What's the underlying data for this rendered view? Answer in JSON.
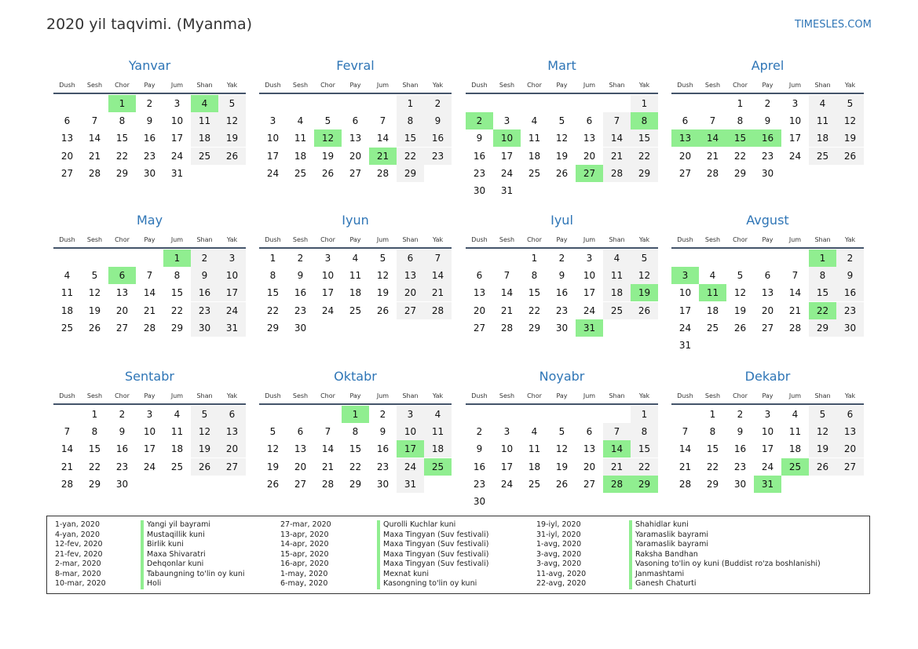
{
  "header": {
    "title": "2020 yil taqvimi. (Myanma)",
    "site": "TIMESLES.COM"
  },
  "weekdays": [
    "Dush",
    "Sesh",
    "Chor",
    "Pay",
    "Jum",
    "Shan",
    "Yak"
  ],
  "colors": {
    "accent": "#2e75b6",
    "holiday": "#90ee90",
    "weekend": "#f2f2f2",
    "rule": "#44546a"
  },
  "months": [
    {
      "name": "Yanvar",
      "start": 2,
      "days": 31,
      "holidays": [
        1,
        4
      ]
    },
    {
      "name": "Fevral",
      "start": 5,
      "days": 29,
      "holidays": [
        12,
        21
      ]
    },
    {
      "name": "Mart",
      "start": 6,
      "days": 31,
      "holidays": [
        2,
        8,
        10,
        27
      ]
    },
    {
      "name": "Aprel",
      "start": 2,
      "days": 30,
      "holidays": [
        13,
        14,
        15,
        16
      ]
    },
    {
      "name": "May",
      "start": 4,
      "days": 31,
      "holidays": [
        1,
        6
      ]
    },
    {
      "name": "Iyun",
      "start": 0,
      "days": 30,
      "holidays": []
    },
    {
      "name": "Iyul",
      "start": 2,
      "days": 31,
      "holidays": [
        19,
        31
      ]
    },
    {
      "name": "Avgust",
      "start": 5,
      "days": 31,
      "holidays": [
        1,
        3,
        11,
        22
      ]
    },
    {
      "name": "Sentabr",
      "start": 1,
      "days": 30,
      "holidays": []
    },
    {
      "name": "Oktabr",
      "start": 3,
      "days": 31,
      "holidays": [
        1,
        17,
        25
      ]
    },
    {
      "name": "Noyabr",
      "start": 6,
      "days": 30,
      "holidays": [
        14,
        28,
        29
      ]
    },
    {
      "name": "Dekabr",
      "start": 1,
      "days": 31,
      "holidays": [
        25,
        31
      ]
    }
  ],
  "holiday_list": [
    [
      {
        "date": "1-yan, 2020",
        "name": "Yangi yil bayrami"
      },
      {
        "date": "4-yan, 2020",
        "name": "Mustaqillik kuni"
      },
      {
        "date": "12-fev, 2020",
        "name": "Birlik kuni"
      },
      {
        "date": "21-fev, 2020",
        "name": "Maxa Shivaratri"
      },
      {
        "date": "2-mar, 2020",
        "name": "Dehqonlar kuni"
      },
      {
        "date": "8-mar, 2020",
        "name": "Tabaungning to'lin oy kuni"
      },
      {
        "date": "10-mar, 2020",
        "name": "Holi"
      }
    ],
    [
      {
        "date": "27-mar, 2020",
        "name": "Qurolli Kuchlar kuni"
      },
      {
        "date": "13-apr, 2020",
        "name": "Maxa Tingyan (Suv festivali)"
      },
      {
        "date": "14-apr, 2020",
        "name": "Maxa Tingyan (Suv festivali)"
      },
      {
        "date": "15-apr, 2020",
        "name": "Maxa Tingyan (Suv festivali)"
      },
      {
        "date": "16-apr, 2020",
        "name": "Maxa Tingyan (Suv festivali)"
      },
      {
        "date": "1-may, 2020",
        "name": "Mexnat kuni"
      },
      {
        "date": "6-may, 2020",
        "name": "Kasongning to'lin oy kuni"
      }
    ],
    [
      {
        "date": "19-iyl, 2020",
        "name": "Shahidlar kuni"
      },
      {
        "date": "31-iyl, 2020",
        "name": "Yaramaslik bayrami"
      },
      {
        "date": "1-avg, 2020",
        "name": "Yaramaslik bayrami"
      },
      {
        "date": "3-avg, 2020",
        "name": "Raksha Bandhan"
      },
      {
        "date": "3-avg, 2020",
        "name": "Vasoning to'lin oy kuni (Buddist ro'za boshlanishi)"
      },
      {
        "date": "11-avg, 2020",
        "name": "Janmashtami"
      },
      {
        "date": "22-avg, 2020",
        "name": "Ganesh Chaturti"
      }
    ]
  ]
}
